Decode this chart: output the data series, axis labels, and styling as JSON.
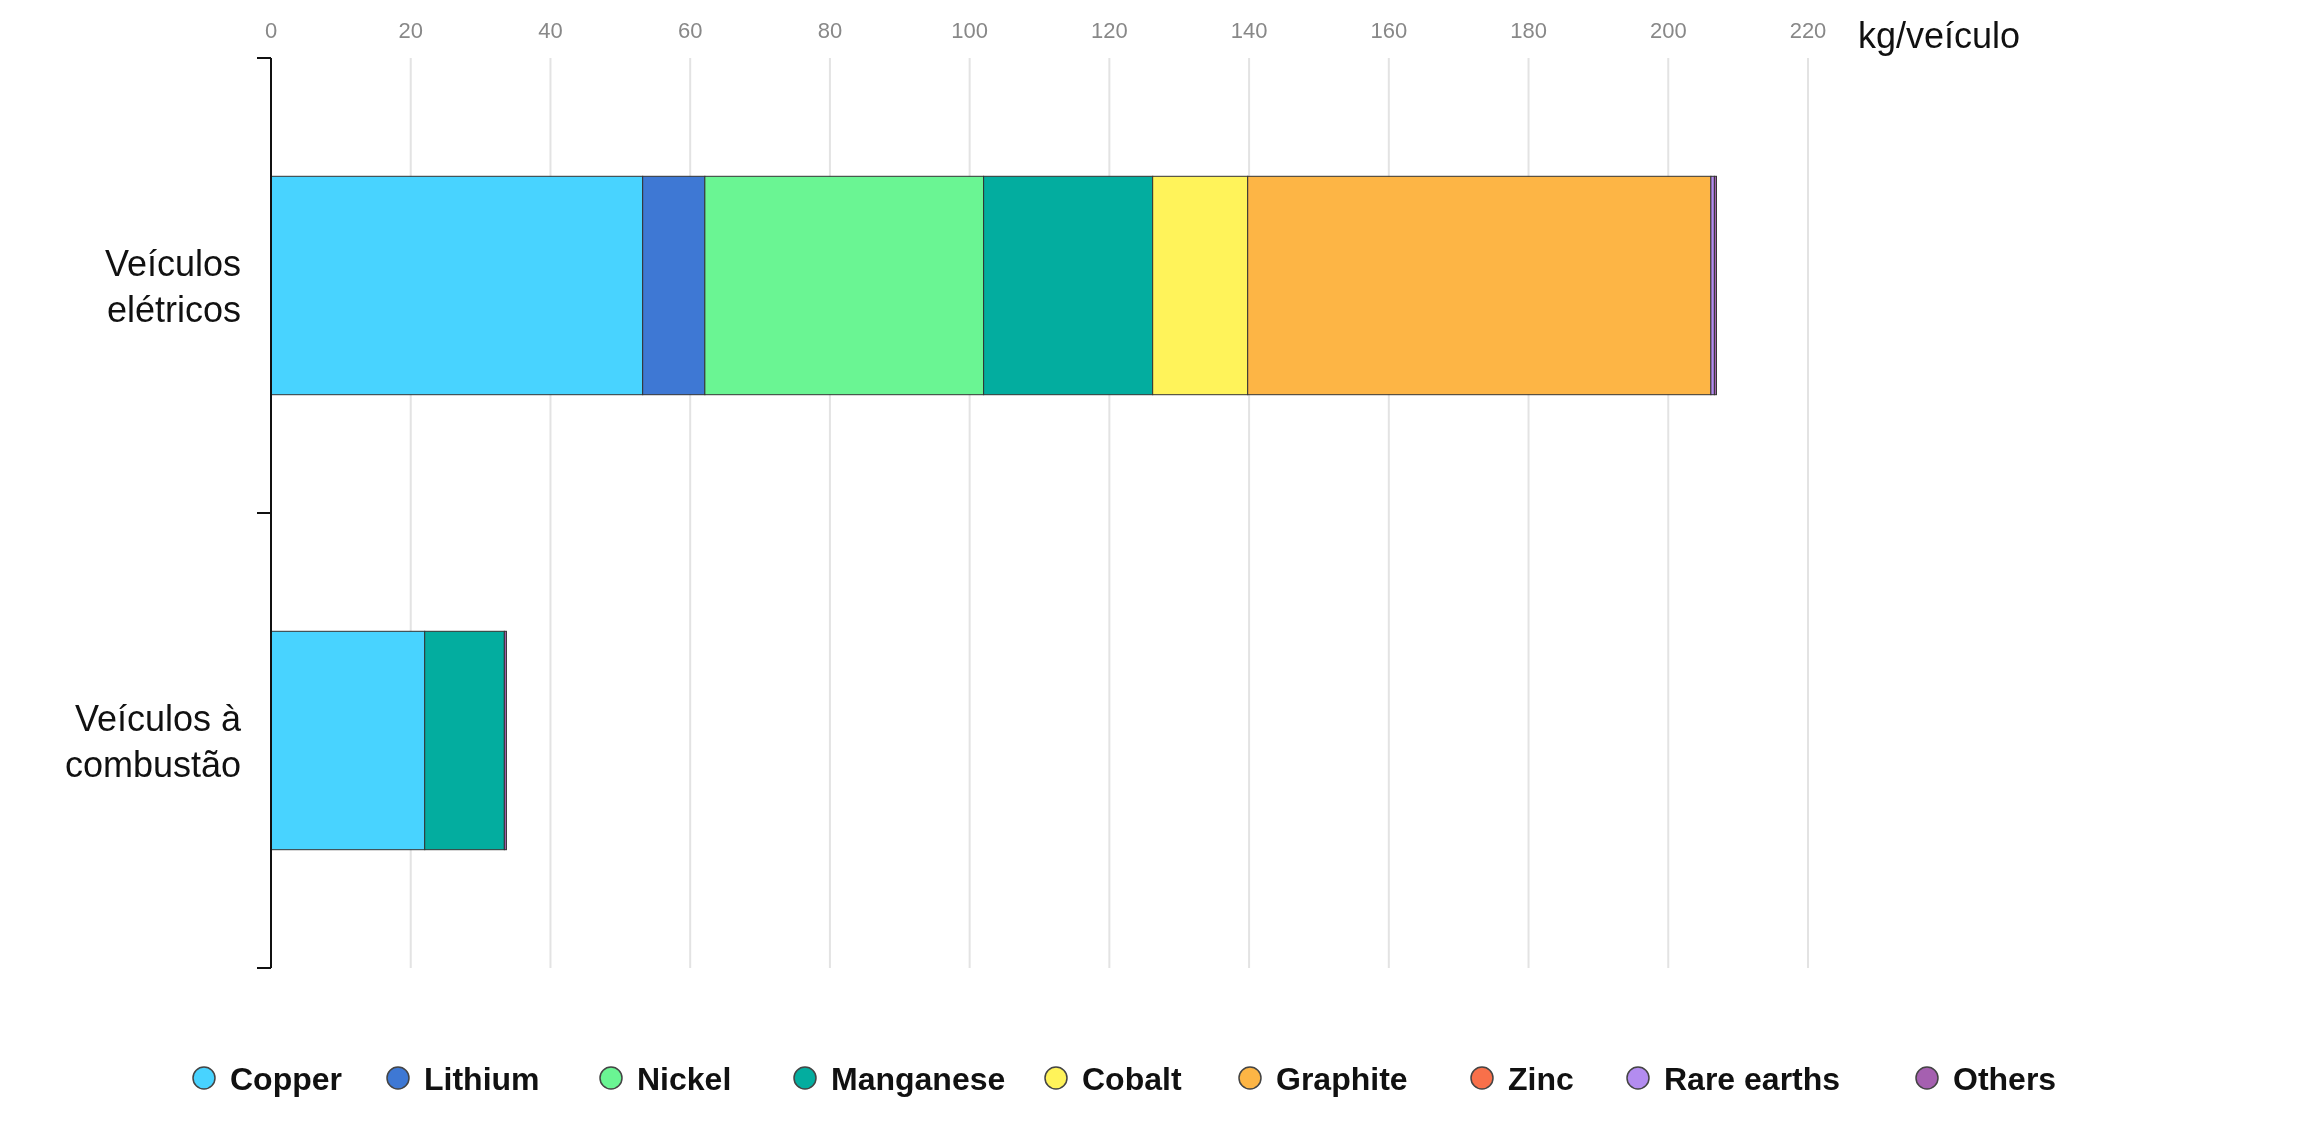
{
  "chart_data": {
    "type": "bar",
    "orientation": "horizontal",
    "stacked": true,
    "xlabel": "kg/veículo",
    "categories": [
      "Veículos\nelétricos",
      "Veículos à\ncombustão"
    ],
    "series": [
      {
        "name": "Copper",
        "color": "#48d3ff",
        "values": [
          53.2,
          22
        ]
      },
      {
        "name": "Lithium",
        "color": "#3e78d4",
        "values": [
          8.9,
          0
        ]
      },
      {
        "name": "Nickel",
        "color": "#6af593",
        "values": [
          39.9,
          0
        ]
      },
      {
        "name": "Manganese",
        "color": "#03ad9f",
        "values": [
          24.2,
          11.4
        ]
      },
      {
        "name": "Cobalt",
        "color": "#fff35a",
        "values": [
          13.6,
          0
        ]
      },
      {
        "name": "Graphite",
        "color": "#fdb545",
        "values": [
          66.3,
          0
        ]
      },
      {
        "name": "Zinc",
        "color": "#f8704a",
        "values": [
          0,
          0
        ]
      },
      {
        "name": "Rare earths",
        "color": "#b38cf0",
        "values": [
          0.5,
          0
        ]
      },
      {
        "name": "Others",
        "color": "#a560b0",
        "values": [
          0.3,
          0.3
        ]
      }
    ],
    "xlim": [
      0,
      220
    ],
    "xticks": [
      0,
      20,
      40,
      60,
      80,
      100,
      120,
      140,
      160,
      180,
      200,
      220
    ],
    "grid": "x",
    "legend": "bottom"
  }
}
